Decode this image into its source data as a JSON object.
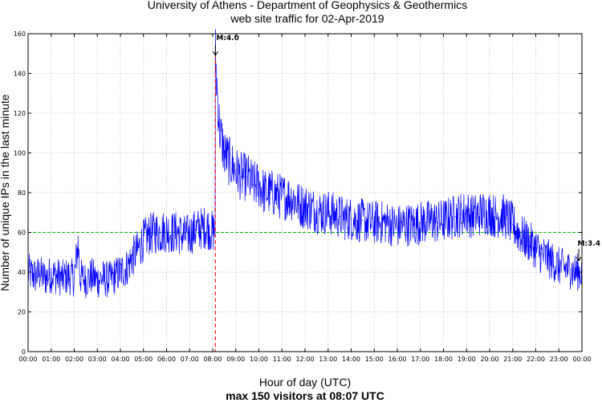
{
  "chart_data": {
    "type": "line",
    "title": "University of Athens - Department of Geophysics & Geothermics",
    "subtitle": "web site traffic for 02-Apr-2019",
    "xlabel": "Hour of day (UTC)",
    "ylabel": "Number of unique IPs in the last minute",
    "footer": "max 150 visitors at 08:07 UTC",
    "x_unit": "hour",
    "xlim": [
      0,
      24
    ],
    "ylim": [
      0,
      160
    ],
    "x_ticks": [
      "00:00",
      "01:00",
      "02:00",
      "03:00",
      "04:00",
      "05:00",
      "06:00",
      "07:00",
      "08:00",
      "09:00",
      "10:00",
      "11:00",
      "12:00",
      "13:00",
      "14:00",
      "15:00",
      "16:00",
      "17:00",
      "18:00",
      "19:00",
      "20:00",
      "21:00",
      "22:00",
      "23:00",
      "00:00"
    ],
    "y_ticks": [
      0,
      20,
      40,
      60,
      80,
      100,
      120,
      140,
      160
    ],
    "grid": true,
    "reference_line": {
      "y": 60,
      "style": "dashed",
      "color": "#00bb00"
    },
    "events": [
      {
        "label": "M:4.0",
        "hour": 8.117,
        "vertical_line": true,
        "color": "#ff0000"
      },
      {
        "label": "M:3.4",
        "hour": 23.95,
        "vertical_line": false,
        "color": "#000000"
      }
    ],
    "series": [
      {
        "color": "#0000ff",
        "x": [
          0,
          0.25,
          0.5,
          0.75,
          1,
          1.25,
          1.5,
          1.75,
          2,
          2.17,
          2.25,
          2.5,
          2.75,
          3,
          3.25,
          3.5,
          3.75,
          4,
          4.25,
          4.5,
          4.75,
          5,
          5.25,
          5.5,
          5.75,
          6,
          6.25,
          6.5,
          6.75,
          7,
          7.25,
          7.5,
          7.75,
          8,
          8.1,
          8.117,
          8.2,
          8.3,
          8.5,
          8.75,
          9,
          9.25,
          9.5,
          9.75,
          10,
          10.25,
          10.5,
          10.75,
          11,
          11.25,
          11.5,
          11.75,
          12,
          12.25,
          12.5,
          12.75,
          13,
          13.25,
          13.5,
          13.75,
          14,
          14.25,
          14.5,
          14.75,
          15,
          15.25,
          15.5,
          15.75,
          16,
          16.25,
          16.5,
          16.75,
          17,
          17.25,
          17.5,
          17.75,
          18,
          18.25,
          18.5,
          18.75,
          19,
          19.25,
          19.5,
          19.75,
          20,
          20.25,
          20.5,
          20.75,
          21,
          21.25,
          21.5,
          21.75,
          22,
          22.25,
          22.5,
          22.75,
          23,
          23.25,
          23.5,
          23.75,
          24
        ],
        "y": [
          40,
          38,
          39,
          37,
          39,
          38,
          37,
          38,
          37,
          55,
          38,
          36,
          38,
          36,
          37,
          36,
          38,
          40,
          42,
          47,
          51,
          56,
          59,
          60,
          60,
          61,
          60,
          60,
          58,
          59,
          61,
          62,
          63,
          60,
          62,
          150,
          130,
          112,
          100,
          95,
          91,
          88,
          88,
          84,
          84,
          80,
          80,
          79,
          78,
          78,
          77,
          74,
          73,
          72,
          71,
          70,
          70,
          69,
          68,
          67,
          67,
          66,
          66,
          65,
          65,
          65,
          65,
          64,
          63,
          64,
          64,
          64,
          65,
          65,
          66,
          65,
          66,
          67,
          68,
          69,
          70,
          68,
          69,
          70,
          70,
          68,
          69,
          67,
          64,
          60,
          57,
          55,
          52,
          49,
          47,
          45,
          43,
          42,
          41,
          40,
          40
        ]
      }
    ]
  }
}
